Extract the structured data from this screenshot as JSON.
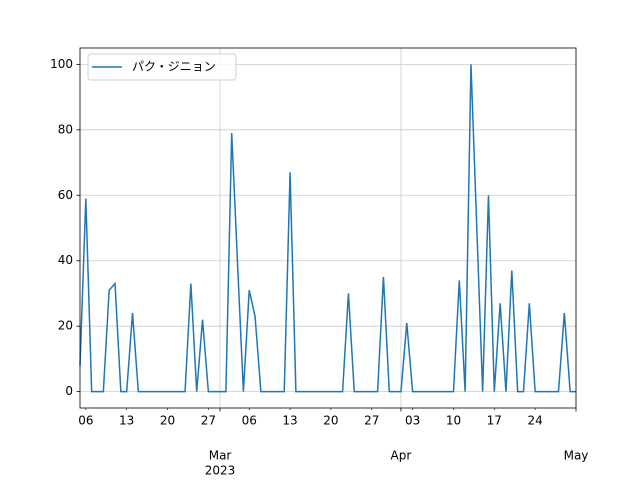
{
  "chart_data": {
    "type": "line",
    "x": [
      "2023-02-05",
      "2023-02-06",
      "2023-02-07",
      "2023-02-08",
      "2023-02-09",
      "2023-02-10",
      "2023-02-11",
      "2023-02-12",
      "2023-02-13",
      "2023-02-14",
      "2023-02-15",
      "2023-02-16",
      "2023-02-17",
      "2023-02-18",
      "2023-02-19",
      "2023-02-20",
      "2023-02-21",
      "2023-02-22",
      "2023-02-23",
      "2023-02-24",
      "2023-02-25",
      "2023-02-26",
      "2023-02-27",
      "2023-02-28",
      "2023-03-01",
      "2023-03-02",
      "2023-03-03",
      "2023-03-04",
      "2023-03-05",
      "2023-03-06",
      "2023-03-07",
      "2023-03-08",
      "2023-03-09",
      "2023-03-10",
      "2023-03-11",
      "2023-03-12",
      "2023-03-13",
      "2023-03-14",
      "2023-03-15",
      "2023-03-16",
      "2023-03-17",
      "2023-03-18",
      "2023-03-19",
      "2023-03-20",
      "2023-03-21",
      "2023-03-22",
      "2023-03-23",
      "2023-03-24",
      "2023-03-25",
      "2023-03-26",
      "2023-03-27",
      "2023-03-28",
      "2023-03-29",
      "2023-03-30",
      "2023-03-31",
      "2023-04-01",
      "2023-04-02",
      "2023-04-03",
      "2023-04-04",
      "2023-04-05",
      "2023-04-06",
      "2023-04-07",
      "2023-04-08",
      "2023-04-09",
      "2023-04-10",
      "2023-04-11",
      "2023-04-12",
      "2023-04-13",
      "2023-04-14",
      "2023-04-15",
      "2023-04-16",
      "2023-04-17",
      "2023-04-18",
      "2023-04-19",
      "2023-04-20",
      "2023-04-21",
      "2023-04-22",
      "2023-04-23",
      "2023-04-24",
      "2023-04-25",
      "2023-04-26",
      "2023-04-27",
      "2023-04-28",
      "2023-04-29",
      "2023-04-30",
      "2023-05-01"
    ],
    "series": [
      {
        "name": "パク・ジニョン",
        "color": "#1f77b4",
        "values": [
          8,
          59,
          0,
          0,
          0,
          31,
          33,
          0,
          0,
          24,
          0,
          0,
          0,
          0,
          0,
          0,
          0,
          0,
          0,
          33,
          0,
          22,
          0,
          0,
          0,
          0,
          79,
          39,
          0,
          31,
          23,
          0,
          0,
          0,
          0,
          0,
          67,
          0,
          0,
          0,
          0,
          0,
          0,
          0,
          0,
          0,
          30,
          0,
          0,
          0,
          0,
          0,
          35,
          0,
          0,
          0,
          21,
          0,
          0,
          0,
          0,
          0,
          0,
          0,
          0,
          34,
          0,
          100,
          50,
          0,
          60,
          0,
          27,
          0,
          37,
          0,
          0,
          27,
          0,
          0,
          0,
          0,
          0,
          24,
          0,
          0
        ]
      }
    ],
    "xlim": [
      "2023-02-05",
      "2023-05-01"
    ],
    "xticks": [
      {
        "value": "2023-03-01",
        "label": "Mar"
      },
      {
        "value": "2023-04-01",
        "label": "Apr"
      },
      {
        "value": "2023-05-01",
        "label": "May"
      }
    ],
    "xticks_minor": [
      {
        "value": "2023-02-06",
        "label": "06"
      },
      {
        "value": "2023-02-13",
        "label": "13"
      },
      {
        "value": "2023-02-20",
        "label": "20"
      },
      {
        "value": "2023-02-27",
        "label": "27"
      },
      {
        "value": "2023-03-06",
        "label": "06"
      },
      {
        "value": "2023-03-13",
        "label": "13"
      },
      {
        "value": "2023-03-20",
        "label": "20"
      },
      {
        "value": "2023-03-27",
        "label": "27"
      },
      {
        "value": "2023-04-03",
        "label": "03"
      },
      {
        "value": "2023-04-10",
        "label": "10"
      },
      {
        "value": "2023-04-17",
        "label": "17"
      },
      {
        "value": "2023-04-24",
        "label": "24"
      }
    ],
    "x_offset_text": "2023",
    "ylim": [
      -5,
      105
    ],
    "yticks": [
      0,
      20,
      40,
      60,
      80,
      100
    ],
    "grid": true,
    "legend": "upper left"
  }
}
